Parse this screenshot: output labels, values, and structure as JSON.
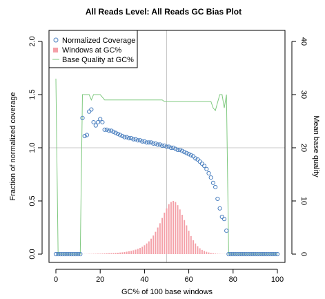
{
  "chart_data": {
    "type": "bar",
    "title": "All Reads Level: All Reads GC Bias Plot",
    "xlabel": "GC% of 100 base windows",
    "ylabel": "Fraction of normalized coverage",
    "ylabel_right": "Mean base quality",
    "xlim": [
      0,
      100
    ],
    "ylim": [
      0,
      2.0
    ],
    "ylim_right": [
      0,
      40
    ],
    "x_ticks": [
      "0",
      "20",
      "40",
      "60",
      "80",
      "100"
    ],
    "y_ticks": [
      "0.0",
      "0.5",
      "1.0",
      "1.5",
      "2.0"
    ],
    "y_ticks_right": [
      "0",
      "10",
      "20",
      "30",
      "40"
    ],
    "reference_lines": {
      "x": 50,
      "y": 1.0
    },
    "legend_position": "top-left",
    "series": [
      {
        "name": "Normalized Coverage",
        "kind": "scatter",
        "color": "#4a7fbf",
        "x": [
          0,
          1,
          2,
          3,
          4,
          5,
          6,
          7,
          8,
          9,
          10,
          11,
          12,
          13,
          14,
          15,
          16,
          17,
          18,
          19,
          20,
          21,
          22,
          23,
          24,
          25,
          26,
          27,
          28,
          29,
          30,
          31,
          32,
          33,
          34,
          35,
          36,
          37,
          38,
          39,
          40,
          41,
          42,
          43,
          44,
          45,
          46,
          47,
          48,
          49,
          50,
          51,
          52,
          53,
          54,
          55,
          56,
          57,
          58,
          59,
          60,
          61,
          62,
          63,
          64,
          65,
          66,
          67,
          68,
          69,
          70,
          71,
          72,
          73,
          74,
          75,
          76,
          77,
          78,
          79,
          80,
          81,
          82,
          83,
          84,
          85,
          86,
          87,
          88,
          89,
          90,
          91,
          92,
          93,
          94,
          95,
          96,
          97,
          98,
          99,
          100
        ],
        "values": [
          0,
          0,
          0,
          0,
          0,
          0,
          0,
          0,
          0,
          0,
          0,
          0,
          1.28,
          1.11,
          1.12,
          1.34,
          1.36,
          1.24,
          1.21,
          1.24,
          1.27,
          1.24,
          1.17,
          1.17,
          1.16,
          1.16,
          1.15,
          1.14,
          1.13,
          1.12,
          1.11,
          1.1,
          1.1,
          1.09,
          1.09,
          1.08,
          1.08,
          1.07,
          1.07,
          1.06,
          1.06,
          1.05,
          1.05,
          1.05,
          1.04,
          1.04,
          1.03,
          1.03,
          1.02,
          1.02,
          1.01,
          1.01,
          1.0,
          1.0,
          0.99,
          0.98,
          0.98,
          0.97,
          0.96,
          0.95,
          0.94,
          0.93,
          0.92,
          0.9,
          0.89,
          0.87,
          0.85,
          0.83,
          0.8,
          0.76,
          0.72,
          0.67,
          0.63,
          0.52,
          0.43,
          0.35,
          0.33,
          0.22,
          0,
          0,
          0,
          0,
          0,
          0,
          0,
          0,
          0,
          0,
          0,
          0,
          0,
          0,
          0,
          0,
          0,
          0,
          0,
          0,
          0,
          0,
          0
        ]
      },
      {
        "name": "Windows at GC%",
        "kind": "bar",
        "color": "#f4a0a8",
        "x": [
          0,
          1,
          2,
          3,
          4,
          5,
          6,
          7,
          8,
          9,
          10,
          11,
          12,
          13,
          14,
          15,
          16,
          17,
          18,
          19,
          20,
          21,
          22,
          23,
          24,
          25,
          26,
          27,
          28,
          29,
          30,
          31,
          32,
          33,
          34,
          35,
          36,
          37,
          38,
          39,
          40,
          41,
          42,
          43,
          44,
          45,
          46,
          47,
          48,
          49,
          50,
          51,
          52,
          53,
          54,
          55,
          56,
          57,
          58,
          59,
          60,
          61,
          62,
          63,
          64,
          65,
          66,
          67,
          68,
          69,
          70,
          71,
          72,
          73,
          74,
          75,
          76,
          77,
          78,
          79,
          80,
          81,
          82,
          83,
          84,
          85,
          86,
          87,
          88,
          89,
          90,
          91,
          92,
          93,
          94,
          95,
          96,
          97,
          98,
          99,
          100
        ],
        "values": [
          0,
          0,
          0,
          0,
          0,
          0,
          0,
          0,
          0,
          0,
          0,
          0,
          0.001,
          0.001,
          0.001,
          0.002,
          0.002,
          0.003,
          0.003,
          0.004,
          0.004,
          0.005,
          0.006,
          0.007,
          0.008,
          0.009,
          0.01,
          0.011,
          0.013,
          0.015,
          0.017,
          0.02,
          0.023,
          0.027,
          0.031,
          0.036,
          0.042,
          0.049,
          0.058,
          0.069,
          0.083,
          0.1,
          0.12,
          0.145,
          0.175,
          0.21,
          0.25,
          0.29,
          0.34,
          0.39,
          0.43,
          0.47,
          0.49,
          0.5,
          0.49,
          0.46,
          0.42,
          0.37,
          0.32,
          0.27,
          0.22,
          0.17,
          0.13,
          0.1,
          0.075,
          0.055,
          0.04,
          0.03,
          0.022,
          0.016,
          0.011,
          0.008,
          0.005,
          0.003,
          0.002,
          0.001,
          0.001,
          0.0005,
          0,
          0,
          0,
          0,
          0,
          0,
          0,
          0,
          0,
          0,
          0,
          0,
          0,
          0,
          0,
          0,
          0,
          0,
          0,
          0,
          0,
          0,
          0
        ]
      },
      {
        "name": "Base Quality at GC%",
        "kind": "line",
        "axis": "right",
        "color": "#7fc97f",
        "x": [
          0,
          1,
          2,
          11,
          12,
          13,
          14,
          15,
          16,
          17,
          18,
          19,
          20,
          21,
          22,
          30,
          40,
          48,
          49,
          50,
          60,
          70,
          71,
          72,
          73,
          74,
          75,
          76,
          77,
          78,
          79,
          80,
          90,
          100
        ],
        "values": [
          33,
          0,
          0,
          0,
          30,
          30,
          30,
          30,
          29,
          30,
          30,
          30,
          30,
          29.5,
          29,
          29,
          29,
          29,
          28.7,
          28.7,
          28.7,
          28.7,
          27.5,
          27,
          28.5,
          30,
          30,
          27.5,
          30,
          0,
          0,
          0,
          0,
          0
        ]
      }
    ]
  }
}
